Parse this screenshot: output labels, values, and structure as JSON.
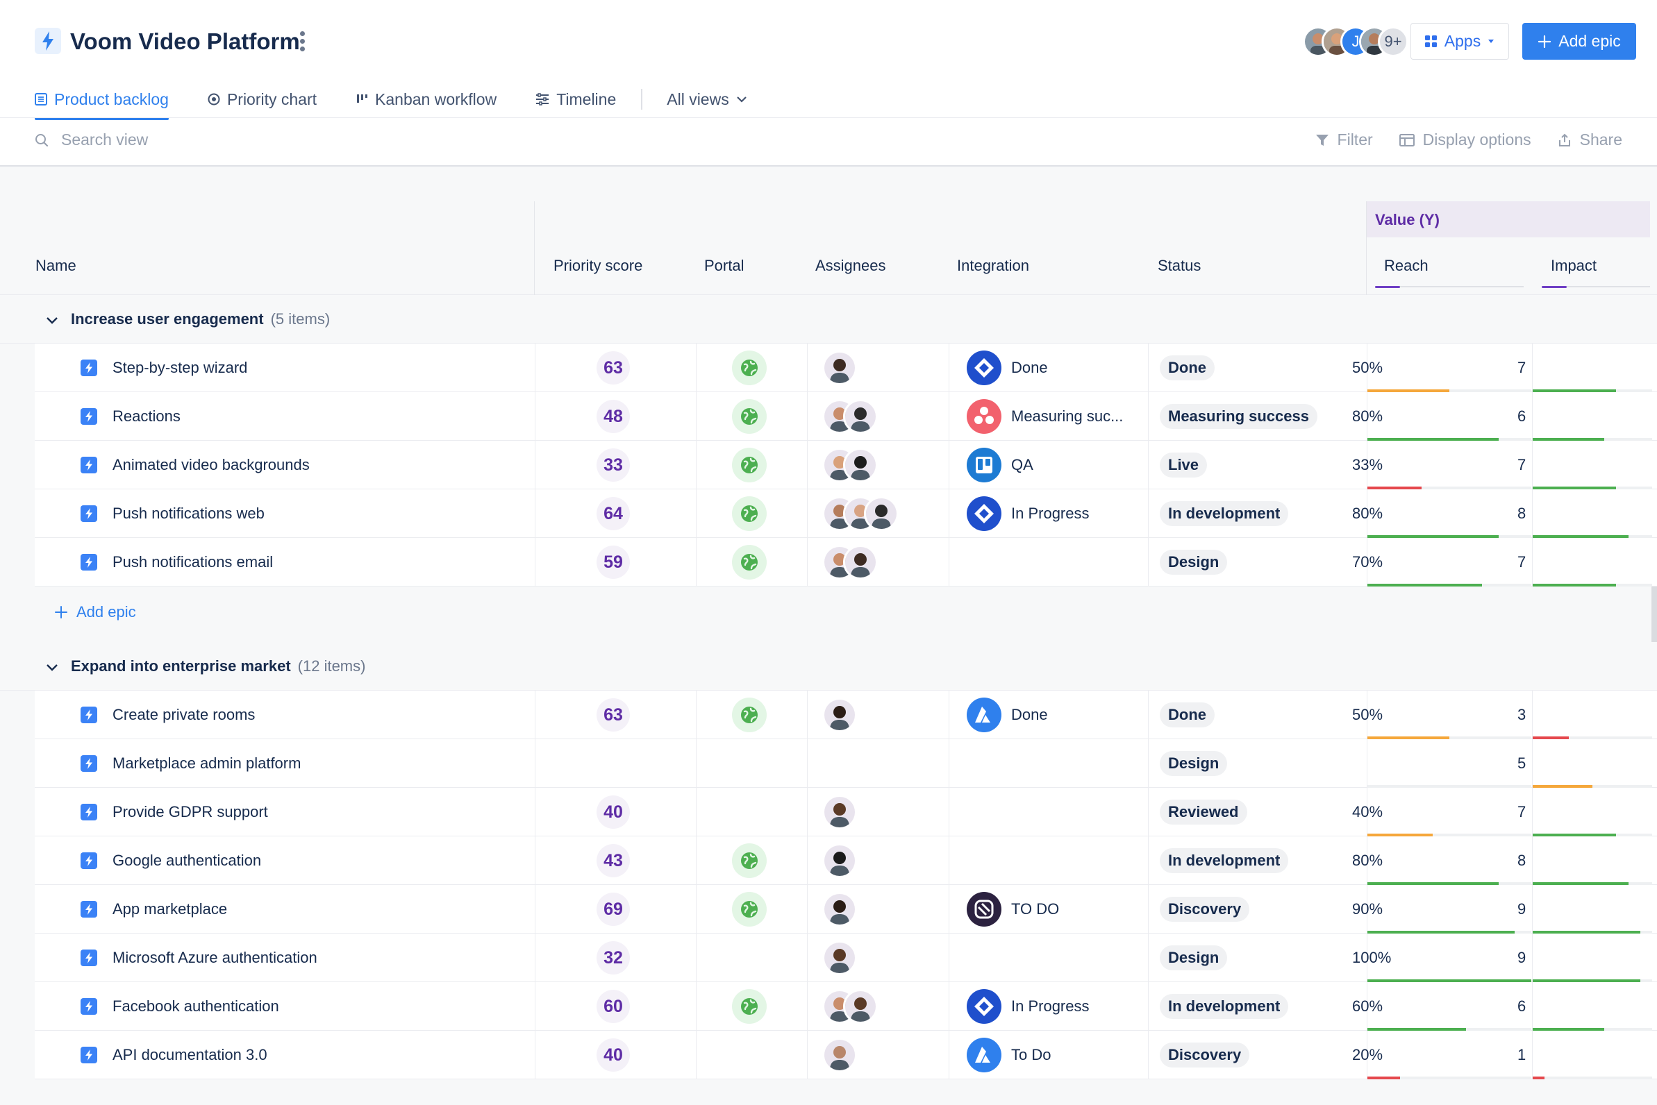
{
  "header": {
    "title": "Voom Video Platform",
    "avatars_more": "9+",
    "avatar_letter": "J",
    "apps_label": "Apps",
    "add_epic_label": "Add epic"
  },
  "tabs": [
    {
      "label": "Product backlog",
      "icon": "list-icon",
      "active": true
    },
    {
      "label": "Priority chart",
      "icon": "target-icon",
      "active": false
    },
    {
      "label": "Kanban workflow",
      "icon": "kanban-icon",
      "active": false
    },
    {
      "label": "Timeline",
      "icon": "timeline-icon",
      "active": false
    }
  ],
  "all_views_label": "All views",
  "toolbar": {
    "search_placeholder": "Search view",
    "filter_label": "Filter",
    "display_label": "Display options",
    "share_label": "Share"
  },
  "columns": {
    "name": "Name",
    "priority": "Priority score",
    "portal": "Portal",
    "assignees": "Assignees",
    "integration": "Integration",
    "status": "Status",
    "value_group": "Value (Y)",
    "reach": "Reach",
    "impact": "Impact"
  },
  "colors": {
    "accent": "#2f80ed",
    "purple": "#5e2ca5",
    "bar_green": "#4caf50",
    "bar_orange": "#f5a73b",
    "bar_red": "#e5484d"
  },
  "groups": [
    {
      "title": "Increase user engagement",
      "count": "(5 items)",
      "add_label": "Add epic",
      "rows": [
        {
          "name": "Step-by-step wizard",
          "score": "63",
          "portal": true,
          "assignees": [
            "#3d2b22"
          ],
          "integration": {
            "type": "jira",
            "text": "Done"
          },
          "status": "Done",
          "reach": "50%",
          "reach_frac": 0.5,
          "impact": "7",
          "impact_frac": 0.7
        },
        {
          "name": "Reactions",
          "score": "48",
          "portal": true,
          "assignees": [
            "#c98d6b",
            "#2b2b2b"
          ],
          "integration": {
            "type": "asana",
            "text": "Measuring suc..."
          },
          "status": "Measuring success",
          "reach": "80%",
          "reach_frac": 0.8,
          "impact": "6",
          "impact_frac": 0.6
        },
        {
          "name": "Animated video backgrounds",
          "score": "33",
          "portal": true,
          "assignees": [
            "#d9a17a",
            "#1d1d1d"
          ],
          "integration": {
            "type": "trello",
            "text": "QA"
          },
          "status": "Live",
          "reach": "33%",
          "reach_frac": 0.33,
          "impact": "7",
          "impact_frac": 0.7
        },
        {
          "name": "Push notifications web",
          "score": "64",
          "portal": true,
          "assignees": [
            "#b57d5c",
            "#d8a383",
            "#2a2a2a"
          ],
          "integration": {
            "type": "jira",
            "text": "In Progress"
          },
          "status": "In development",
          "reach": "80%",
          "reach_frac": 0.8,
          "impact": "8",
          "impact_frac": 0.8
        },
        {
          "name": "Push notifications email",
          "score": "59",
          "portal": true,
          "assignees": [
            "#c98d6b",
            "#3d2b22"
          ],
          "integration": null,
          "status": "Design",
          "reach": "70%",
          "reach_frac": 0.7,
          "impact": "7",
          "impact_frac": 0.7
        }
      ]
    },
    {
      "title": "Expand into enterprise market",
      "count": "(12 items)",
      "rows": [
        {
          "name": "Create private rooms",
          "score": "63",
          "portal": true,
          "assignees": [
            "#2b1d16"
          ],
          "integration": {
            "type": "azure",
            "text": "Done"
          },
          "status": "Done",
          "reach": "50%",
          "reach_frac": 0.5,
          "impact": "3",
          "impact_frac": 0.3
        },
        {
          "name": "Marketplace admin platform",
          "score": "",
          "portal": false,
          "assignees": [],
          "integration": null,
          "status": "Design",
          "reach": "",
          "reach_frac": 0,
          "impact": "5",
          "impact_frac": 0.5
        },
        {
          "name": "Provide GDPR support",
          "score": "40",
          "portal": false,
          "assignees": [
            "#5a3a26"
          ],
          "integration": null,
          "status": "Reviewed",
          "reach": "40%",
          "reach_frac": 0.4,
          "impact": "7",
          "impact_frac": 0.7
        },
        {
          "name": "Google authentication",
          "score": "43",
          "portal": true,
          "assignees": [
            "#1a1a1a"
          ],
          "integration": null,
          "status": "In development",
          "reach": "80%",
          "reach_frac": 0.8,
          "impact": "8",
          "impact_frac": 0.8
        },
        {
          "name": "App marketplace",
          "score": "69",
          "portal": true,
          "assignees": [
            "#2b1d16"
          ],
          "integration": {
            "type": "linear",
            "text": "TO DO"
          },
          "status": "Discovery",
          "reach": "90%",
          "reach_frac": 0.9,
          "impact": "9",
          "impact_frac": 0.9
        },
        {
          "name": "Microsoft Azure authentication",
          "score": "32",
          "portal": false,
          "assignees": [
            "#5a3a26"
          ],
          "integration": null,
          "status": "Design",
          "reach": "100%",
          "reach_frac": 1.0,
          "impact": "9",
          "impact_frac": 0.9
        },
        {
          "name": "Facebook authentication",
          "score": "60",
          "portal": true,
          "assignees": [
            "#c98d6b",
            "#5a3a26"
          ],
          "integration": {
            "type": "jira",
            "text": "In Progress"
          },
          "status": "In development",
          "reach": "60%",
          "reach_frac": 0.6,
          "impact": "6",
          "impact_frac": 0.6
        },
        {
          "name": "API documentation 3.0",
          "score": "40",
          "portal": false,
          "assignees": [
            "#b8866a"
          ],
          "integration": {
            "type": "azure",
            "text": "To Do"
          },
          "status": "Discovery",
          "reach": "20%",
          "reach_frac": 0.2,
          "impact": "1",
          "impact_frac": 0.1
        }
      ]
    }
  ]
}
